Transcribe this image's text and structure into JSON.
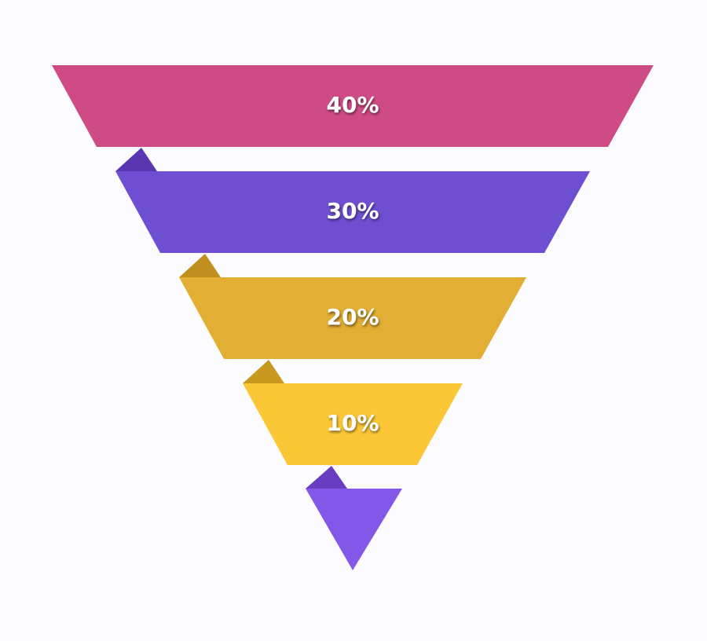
{
  "chart_data": {
    "type": "funnel",
    "values": [
      40,
      30,
      20,
      10
    ],
    "value_labels": [
      "40%",
      "30%",
      "20%",
      "10%"
    ],
    "colors": [
      "#cf4b86",
      "#6f4fd1",
      "#e2ae33",
      "#fcc736"
    ]
  }
}
